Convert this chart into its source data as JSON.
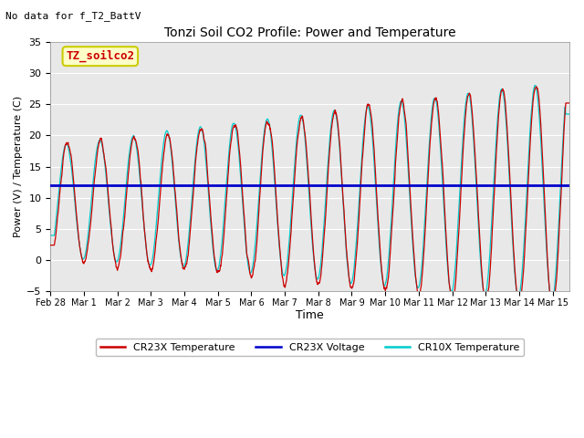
{
  "title": "Tonzi Soil CO2 Profile: Power and Temperature",
  "subtitle": "No data for f_T2_BattV",
  "xlabel": "Time",
  "ylabel": "Power (V) / Temperature (C)",
  "ylim": [
    -5,
    35
  ],
  "yticks": [
    -5,
    0,
    5,
    10,
    15,
    20,
    25,
    30,
    35
  ],
  "legend_box_label": "TZ_soilco2",
  "legend_box_facecolor": "#ffffc8",
  "legend_box_edgecolor": "#cccc00",
  "plot_bg_color": "#e8e8e8",
  "voltage_line_y": 12.0,
  "cr23x_color": "#cc0000",
  "cr10x_color": "#00cccc",
  "voltage_color": "#0000cc",
  "x_labels": [
    "Feb 28",
    "Mar 1",
    "Mar 2",
    "Mar 3",
    "Mar 4",
    "Mar 5",
    "Mar 6",
    "Mar 7",
    "Mar 8",
    "Mar 9",
    "Mar 10",
    "Mar 11",
    "Mar 12",
    "Mar 13",
    "Mar 14",
    "Mar 15"
  ],
  "x_ticks": [
    0,
    1,
    2,
    3,
    4,
    5,
    6,
    7,
    8,
    9,
    10,
    11,
    12,
    13,
    14,
    15
  ],
  "legend_labels": [
    "CR23X Temperature",
    "CR23X Voltage",
    "CR10X Temperature"
  ],
  "figsize": [
    6.4,
    4.8
  ],
  "dpi": 100
}
